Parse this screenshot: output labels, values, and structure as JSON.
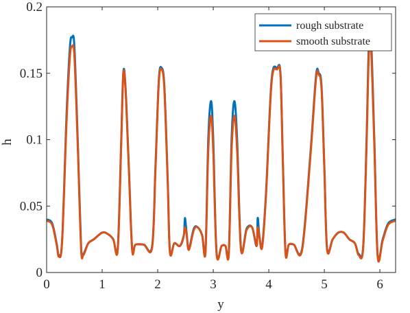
{
  "chart_data": {
    "type": "line",
    "title": "",
    "xlabel": "y",
    "ylabel": "h",
    "xlim": [
      0,
      6.283
    ],
    "ylim": [
      0,
      0.2
    ],
    "xticks": [
      0,
      1,
      2,
      3,
      4,
      5,
      6
    ],
    "xtick_labels": [
      "0",
      "1",
      "2",
      "3",
      "4",
      "5",
      "6"
    ],
    "yticks": [
      0,
      0.05,
      0.1,
      0.15,
      0.2
    ],
    "ytick_labels": [
      "0",
      "0.05",
      "0.1",
      "0.15",
      "0.2"
    ],
    "grid": false,
    "legend_position": "top-right",
    "series": [
      {
        "name": "rough substrate",
        "color": "#0072BD",
        "x": [
          0,
          0.1,
          0.18,
          0.22,
          0.28,
          0.36,
          0.42,
          0.46,
          0.5,
          0.56,
          0.62,
          0.66,
          0.75,
          0.85,
          1.0,
          1.1,
          1.2,
          1.28,
          1.34,
          1.38,
          1.42,
          1.48,
          1.54,
          1.6,
          1.75,
          1.9,
          1.96,
          2.02,
          2.07,
          2.12,
          2.18,
          2.22,
          2.3,
          2.4,
          2.47,
          2.49,
          2.52,
          2.56,
          2.65,
          2.72,
          2.8,
          2.86,
          2.91,
          2.96,
          3.0,
          3.06,
          3.15,
          3.22,
          3.28,
          3.33,
          3.38,
          3.43,
          3.5,
          3.6,
          3.7,
          3.78,
          3.8,
          3.83,
          3.88,
          3.95,
          4.05,
          4.15,
          4.21,
          4.25,
          4.3,
          4.36,
          4.45,
          4.6,
          4.75,
          4.85,
          4.9,
          4.95,
          5.0,
          5.05,
          5.15,
          5.25,
          5.35,
          5.45,
          5.55,
          5.62,
          5.7,
          5.76,
          5.8,
          5.84,
          5.9,
          5.96,
          6.05,
          6.15,
          6.283
        ],
        "y": [
          0.04,
          0.037,
          0.022,
          0.013,
          0.025,
          0.12,
          0.17,
          0.177,
          0.17,
          0.1,
          0.02,
          0.014,
          0.022,
          0.025,
          0.03,
          0.029,
          0.025,
          0.018,
          0.095,
          0.15,
          0.14,
          0.08,
          0.018,
          0.021,
          0.021,
          0.02,
          0.08,
          0.145,
          0.154,
          0.14,
          0.07,
          0.016,
          0.022,
          0.02,
          0.028,
          0.041,
          0.03,
          0.018,
          0.033,
          0.034,
          0.028,
          0.016,
          0.1,
          0.129,
          0.1,
          0.015,
          0.02,
          0.02,
          0.015,
          0.1,
          0.129,
          0.1,
          0.018,
          0.033,
          0.034,
          0.02,
          0.041,
          0.028,
          0.02,
          0.06,
          0.145,
          0.154,
          0.15,
          0.09,
          0.016,
          0.021,
          0.021,
          0.018,
          0.09,
          0.148,
          0.15,
          0.14,
          0.08,
          0.018,
          0.025,
          0.03,
          0.03,
          0.025,
          0.022,
          0.014,
          0.02,
          0.1,
          0.17,
          0.177,
          0.1,
          0.013,
          0.025,
          0.037,
          0.04
        ]
      },
      {
        "name": "smooth substrate",
        "color": "#D95319",
        "x": [
          0,
          0.1,
          0.18,
          0.22,
          0.28,
          0.36,
          0.42,
          0.46,
          0.5,
          0.56,
          0.62,
          0.66,
          0.75,
          0.85,
          1.0,
          1.1,
          1.2,
          1.28,
          1.34,
          1.38,
          1.42,
          1.48,
          1.54,
          1.6,
          1.75,
          1.9,
          1.96,
          2.02,
          2.07,
          2.12,
          2.18,
          2.22,
          2.3,
          2.4,
          2.47,
          2.49,
          2.52,
          2.56,
          2.65,
          2.72,
          2.8,
          2.86,
          2.91,
          2.96,
          3.0,
          3.06,
          3.15,
          3.22,
          3.28,
          3.33,
          3.38,
          3.43,
          3.5,
          3.6,
          3.7,
          3.78,
          3.8,
          3.83,
          3.88,
          3.95,
          4.05,
          4.15,
          4.21,
          4.25,
          4.3,
          4.36,
          4.45,
          4.6,
          4.75,
          4.85,
          4.9,
          4.95,
          5.0,
          5.05,
          5.15,
          5.25,
          5.35,
          5.45,
          5.55,
          5.62,
          5.7,
          5.76,
          5.8,
          5.84,
          5.9,
          5.96,
          6.05,
          6.15,
          6.283
        ],
        "y": [
          0.039,
          0.036,
          0.021,
          0.012,
          0.024,
          0.115,
          0.163,
          0.17,
          0.163,
          0.096,
          0.019,
          0.013,
          0.022,
          0.025,
          0.03,
          0.029,
          0.025,
          0.017,
          0.092,
          0.149,
          0.138,
          0.078,
          0.017,
          0.021,
          0.021,
          0.019,
          0.078,
          0.143,
          0.153,
          0.138,
          0.068,
          0.015,
          0.022,
          0.02,
          0.028,
          0.034,
          0.029,
          0.017,
          0.032,
          0.034,
          0.028,
          0.015,
          0.092,
          0.118,
          0.092,
          0.014,
          0.02,
          0.02,
          0.014,
          0.092,
          0.118,
          0.092,
          0.017,
          0.032,
          0.034,
          0.02,
          0.034,
          0.027,
          0.019,
          0.058,
          0.143,
          0.153,
          0.149,
          0.088,
          0.015,
          0.021,
          0.021,
          0.017,
          0.088,
          0.146,
          0.149,
          0.138,
          0.078,
          0.017,
          0.025,
          0.03,
          0.03,
          0.025,
          0.022,
          0.013,
          0.019,
          0.096,
          0.163,
          0.17,
          0.096,
          0.012,
          0.024,
          0.036,
          0.039
        ]
      }
    ]
  }
}
